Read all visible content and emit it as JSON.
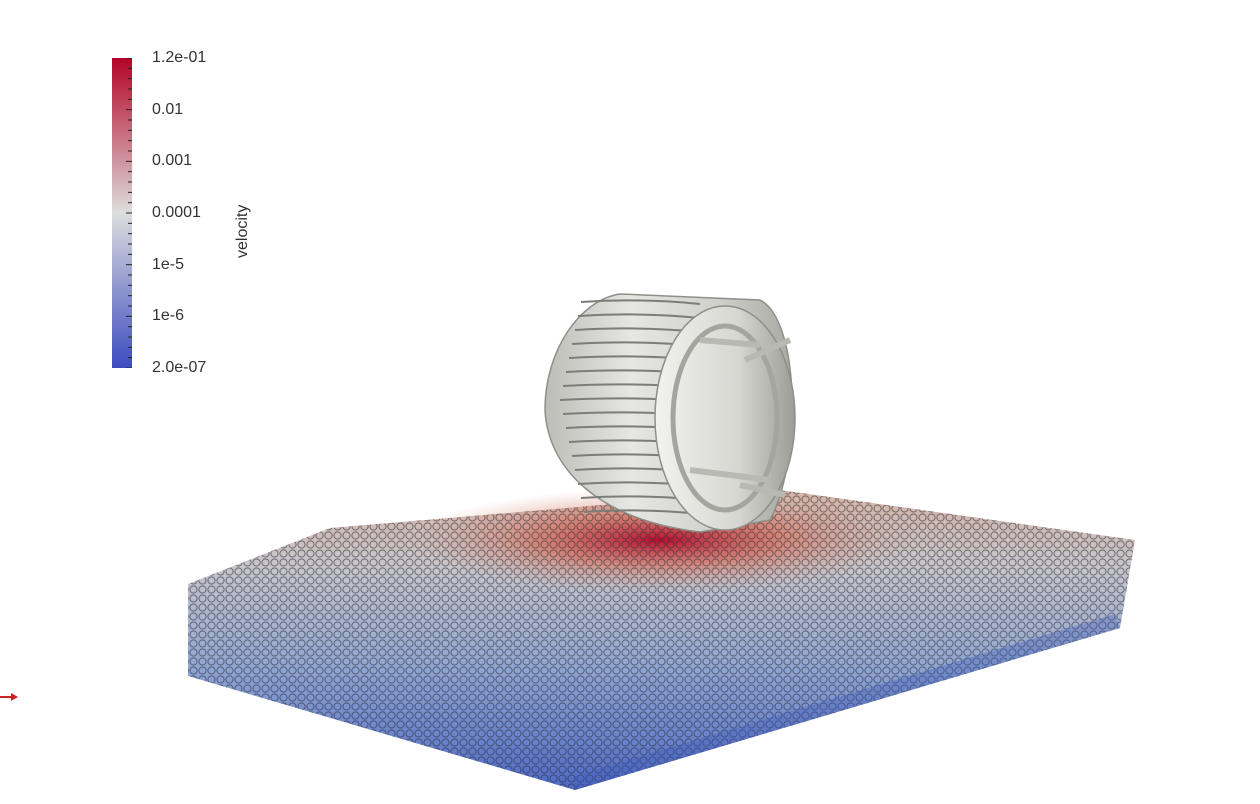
{
  "colorbar": {
    "title": "velocity",
    "tick_labels": [
      "1.2e-01",
      "0.01",
      "0.001",
      "0.0001",
      "1e-5",
      "1e-6",
      "2.0e-07"
    ],
    "color_top": "#b40426",
    "color_mid": "#dddddd",
    "color_bottom": "#3b4cc0",
    "min": 2e-07,
    "max": 0.12,
    "scale": "log"
  },
  "scene": {
    "wheel_color": "#d8d8d4",
    "particle_colors": [
      "#b40426",
      "#e07a5f",
      "#d9b8a8",
      "#c9c9cc",
      "#9fb3d9",
      "#6f8fd6",
      "#4b68c7"
    ],
    "axis_marker_color": "#cc2222",
    "axis_icon": "axis-orientation-icon"
  }
}
